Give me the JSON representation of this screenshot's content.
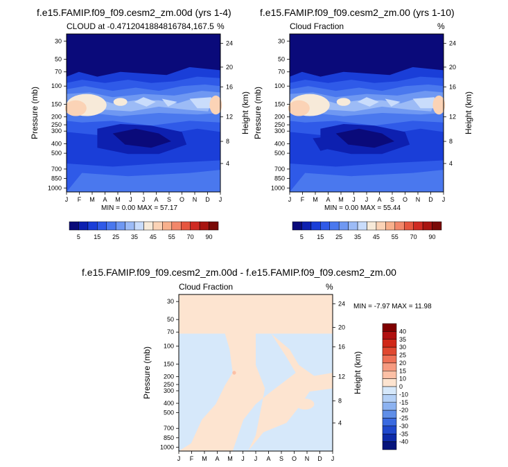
{
  "chart_data": [
    {
      "type": "contour",
      "title": "f.e15.FAMIP.f09_f09.cesm2_zm.00d (yrs 1-4)",
      "left_label": "CLOUD at -0.4712041884816784,167.5",
      "right_label": "%",
      "xlabel": "",
      "ylabel": "Pressure (mb)",
      "ylabel_right": "Height (km)",
      "x_ticks": [
        "J",
        "F",
        "M",
        "A",
        "M",
        "J",
        "J",
        "A",
        "S",
        "O",
        "N",
        "D",
        "J"
      ],
      "y_ticks": [
        "30",
        "50",
        "70",
        "100",
        "150",
        "200",
        "250",
        "300",
        "400",
        "500",
        "700",
        "850",
        "1000"
      ],
      "y_right_ticks": [
        "24",
        "20",
        "16",
        "12",
        "8",
        "4"
      ],
      "stats": "MIN =   0.00 MAX =  57.17",
      "min": 0.0,
      "max": 57.17,
      "colorbar_labels": [
        "5",
        "15",
        "25",
        "35",
        "45",
        "55",
        "70",
        "90"
      ]
    },
    {
      "type": "contour",
      "title": "f.e15.FAMIP.f09_f09.cesm2_zm.00 (yrs 1-10)",
      "left_label": "Cloud Fraction",
      "right_label": "%",
      "xlabel": "",
      "ylabel": "Pressure (mb)",
      "ylabel_right": "Height (km)",
      "x_ticks": [
        "J",
        "F",
        "M",
        "A",
        "M",
        "J",
        "J",
        "A",
        "S",
        "O",
        "N",
        "D",
        "J"
      ],
      "y_ticks": [
        "30",
        "50",
        "70",
        "100",
        "150",
        "200",
        "250",
        "300",
        "400",
        "500",
        "700",
        "850",
        "1000"
      ],
      "y_right_ticks": [
        "24",
        "20",
        "16",
        "12",
        "8",
        "4"
      ],
      "stats": "MIN =   0.00 MAX =  55.44",
      "min": 0.0,
      "max": 55.44,
      "colorbar_labels": [
        "5",
        "15",
        "25",
        "35",
        "45",
        "55",
        "70",
        "90"
      ]
    },
    {
      "type": "contour",
      "title": "f.e15.FAMIP.f09_f09.cesm2_zm.00d - f.e15.FAMIP.f09_f09.cesm2_zm.00",
      "left_label": "Cloud Fraction",
      "right_label": "%",
      "xlabel": "",
      "ylabel": "Pressure (mb)",
      "ylabel_right": "Height (km)",
      "x_ticks": [
        "J",
        "F",
        "M",
        "A",
        "M",
        "J",
        "J",
        "A",
        "S",
        "O",
        "N",
        "D",
        "J"
      ],
      "y_ticks": [
        "30",
        "50",
        "70",
        "100",
        "150",
        "200",
        "250",
        "300",
        "400",
        "500",
        "700",
        "850",
        "1000"
      ],
      "y_right_ticks": [
        "24",
        "20",
        "16",
        "12",
        "8",
        "4"
      ],
      "stats": "MIN = -7.97 MAX =  11.98",
      "min": -7.97,
      "max": 11.98,
      "colorbar_labels": [
        "40",
        "35",
        "30",
        "25",
        "20",
        "15",
        "10",
        "0",
        "-10",
        "-15",
        "-20",
        "-25",
        "-30",
        "-35",
        "-40"
      ]
    }
  ],
  "colors": {
    "abs_scale": [
      "#0a0a7a",
      "#0d20b0",
      "#1a3ed8",
      "#2f5ae8",
      "#4a78ee",
      "#6f98f2",
      "#9cbbf6",
      "#c9dcfb",
      "#f7ead9",
      "#fbd3b6",
      "#f8b08c",
      "#f2876a",
      "#e6563f",
      "#cf2a22",
      "#a81410",
      "#7a0a06"
    ],
    "diff_scale": [
      "#800000",
      "#b01010",
      "#d02818",
      "#e04830",
      "#ee7056",
      "#f69a80",
      "#fcc0a6",
      "#fde4d0",
      "#d6e8fa",
      "#b4d0f6",
      "#8cb2f0",
      "#5f8ee8",
      "#3a6ae0",
      "#1f48cc",
      "#0d2aa8",
      "#06147c"
    ]
  }
}
